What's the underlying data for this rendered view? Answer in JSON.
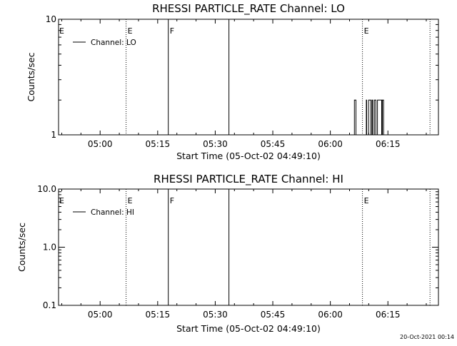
{
  "footer_timestamp": "20-Oct-2021 00:14",
  "chart_data": [
    {
      "type": "line",
      "title": "RHESSI PARTICLE_RATE Channel: LO",
      "xlabel": "Start Time (05-Oct-02 04:49:10)",
      "ylabel": "Counts/sec",
      "yscale": "log",
      "ylim": [
        1,
        10
      ],
      "yticks": [
        {
          "value": 1,
          "label": "1"
        },
        {
          "value": 10,
          "label": "10"
        }
      ],
      "xlim_minutes": [
        0,
        99
      ],
      "xticks": [
        {
          "minute": 10.8333,
          "label": "05:00"
        },
        {
          "minute": 25.8333,
          "label": "05:15"
        },
        {
          "minute": 40.8333,
          "label": "05:30"
        },
        {
          "minute": 55.8333,
          "label": "05:45"
        },
        {
          "minute": 70.8333,
          "label": "06:00"
        },
        {
          "minute": 85.8333,
          "label": "06:15"
        }
      ],
      "legend": {
        "label": "Channel: LO",
        "position": "top-left"
      },
      "markers": [
        {
          "minute": 17.6,
          "style": "dotted",
          "label": "E"
        },
        {
          "minute": 28.6,
          "style": "solid",
          "label": "F"
        },
        {
          "minute": 44.4,
          "style": "solid",
          "label": ""
        },
        {
          "minute": 79.2,
          "style": "dotted",
          "label": "E"
        },
        {
          "minute": 96.8,
          "style": "dotted",
          "label": ""
        }
      ],
      "edge_label": "E",
      "series": [
        {
          "x": [
            77.0,
            77.1,
            77.4,
            77.5,
            77.6,
            78.0,
            79.9,
            80.2,
            80.3,
            80.6,
            80.8,
            81.0,
            81.4,
            81.7,
            81.9,
            82.1,
            82.3,
            82.7,
            83.1,
            83.9,
            84.2,
            84.4,
            84.7
          ],
          "y": [
            1,
            2,
            2,
            1,
            1,
            1,
            1,
            2,
            1,
            1,
            2,
            2,
            1,
            2,
            1,
            1,
            2,
            1,
            2,
            2,
            1,
            2,
            1
          ]
        }
      ]
    },
    {
      "type": "line",
      "title": "RHESSI PARTICLE_RATE Channel: HI",
      "xlabel": "Start Time (05-Oct-02 04:49:10)",
      "ylabel": "Counts/sec",
      "yscale": "log",
      "ylim": [
        0.1,
        10
      ],
      "yticks": [
        {
          "value": 0.1,
          "label": "0.1"
        },
        {
          "value": 1,
          "label": "1.0"
        },
        {
          "value": 10,
          "label": "10.0"
        }
      ],
      "xlim_minutes": [
        0,
        99
      ],
      "xticks": [
        {
          "minute": 10.8333,
          "label": "05:00"
        },
        {
          "minute": 25.8333,
          "label": "05:15"
        },
        {
          "minute": 40.8333,
          "label": "05:30"
        },
        {
          "minute": 55.8333,
          "label": "05:45"
        },
        {
          "minute": 70.8333,
          "label": "06:00"
        },
        {
          "minute": 85.8333,
          "label": "06:15"
        }
      ],
      "legend": {
        "label": "Channel: HI",
        "position": "top-left"
      },
      "markers": [
        {
          "minute": 17.6,
          "style": "dotted",
          "label": "E"
        },
        {
          "minute": 28.6,
          "style": "solid",
          "label": "F"
        },
        {
          "minute": 44.4,
          "style": "solid",
          "label": ""
        },
        {
          "minute": 79.2,
          "style": "dotted",
          "label": "E"
        },
        {
          "minute": 96.8,
          "style": "dotted",
          "label": ""
        }
      ],
      "edge_label": "E",
      "series": [
        {
          "x": [],
          "y": []
        }
      ]
    }
  ]
}
